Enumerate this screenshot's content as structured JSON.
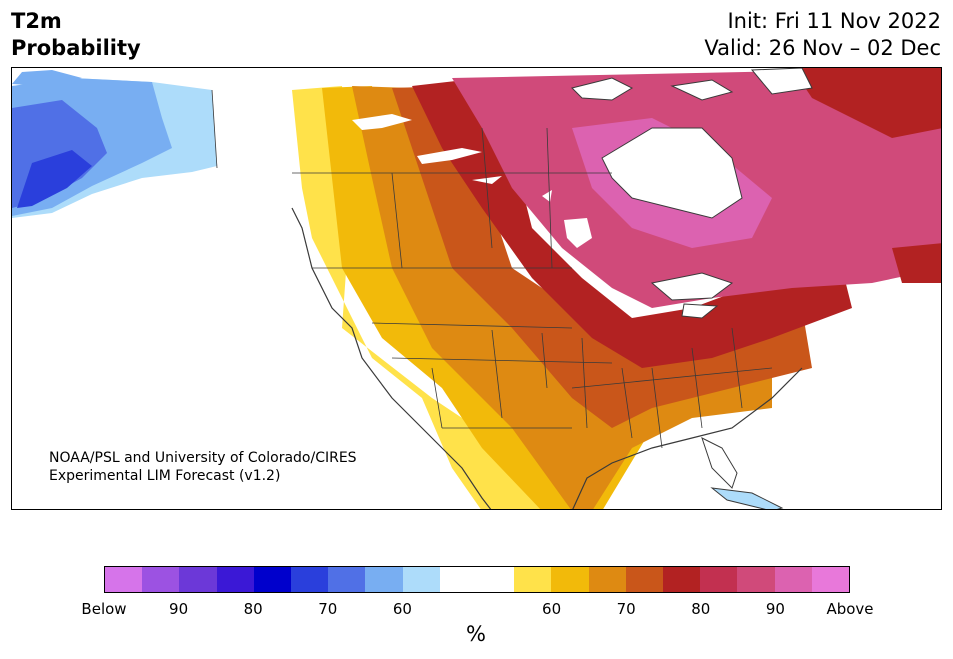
{
  "header": {
    "title_line1": "T2m",
    "title_line2": "Probability",
    "init": "Init: Fri 11 Nov 2022",
    "valid": "Valid: 26 Nov – 02 Dec"
  },
  "credit": {
    "line1": "NOAA/PSL and University of Colorado/CIRES",
    "line2": "Experimental LIM Forecast (v1.2)"
  },
  "colorbar": {
    "colors": [
      "#d674ea",
      "#9c52e2",
      "#6c38d8",
      "#3b18d6",
      "#0000cc",
      "#2a3fdc",
      "#5070e6",
      "#78aef2",
      "#addcfa",
      "#ffffff",
      "#ffffff",
      "#ffe24a",
      "#f2ba0a",
      "#de8a12",
      "#c9561a",
      "#b22222",
      "#c23050",
      "#d04a7a",
      "#dc62b0",
      "#e878da"
    ],
    "tick_labels": [
      "Below",
      "90",
      "80",
      "70",
      "60",
      "60",
      "70",
      "80",
      "90",
      "Above"
    ],
    "unit": "%"
  },
  "legend": {
    "categories": [
      "Below",
      "90",
      "80",
      "70",
      "60",
      "60",
      "70",
      "80",
      "90",
      "Above"
    ]
  }
}
